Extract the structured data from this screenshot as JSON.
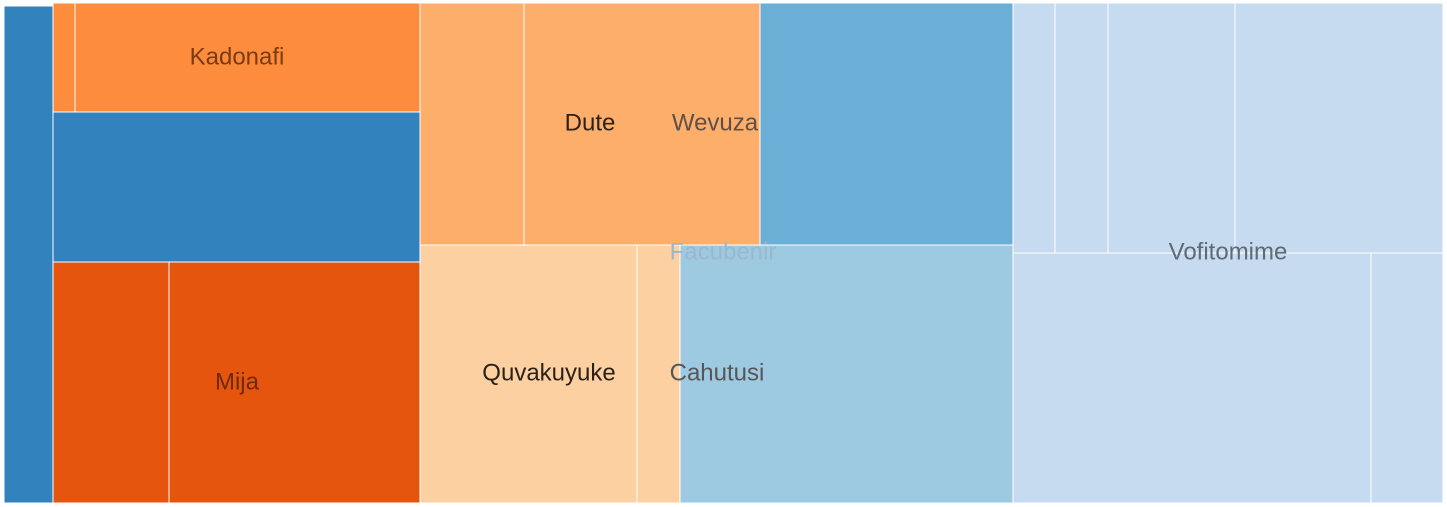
{
  "chart_data": {
    "type": "treemap",
    "title": "",
    "colors": {
      "dark_blue": "#3182bd",
      "mid_blue": "#6baed6",
      "light_blue": "#9ecae1",
      "pale_blue": "#c6dbef",
      "dark_orange": "#e6550d",
      "mid_orange": "#fd8d3c",
      "light_orange": "#fdae6b",
      "pale_orange": "#fdd0a2"
    },
    "groups": [
      {
        "name": "Kadonafi",
        "color": "mid_orange",
        "value": 3.6
      },
      {
        "name": "Mija",
        "color": "dark_orange",
        "value": 8.8
      },
      {
        "name": "Dute",
        "color": "light_orange",
        "value": 2.5
      },
      {
        "name": "Wevuza",
        "color": "light_orange",
        "value": 5.7
      },
      {
        "name": "Quvakuyuke",
        "color": "pale_orange",
        "value": 5.5
      },
      {
        "name": "Cahutusi",
        "color": "pale_orange",
        "value": 1.0
      },
      {
        "name": "Facubenir",
        "color": "light_blue",
        "value": 8.5
      },
      {
        "name": "Vofitomime",
        "color": "pale_blue",
        "value": 21.4
      }
    ],
    "unlabeled_blocks": [
      {
        "color": "dark_blue",
        "value": 1.2
      },
      {
        "color": "dark_blue",
        "value": 8.3
      },
      {
        "color": "mid_blue",
        "value": 6.5
      }
    ]
  }
}
